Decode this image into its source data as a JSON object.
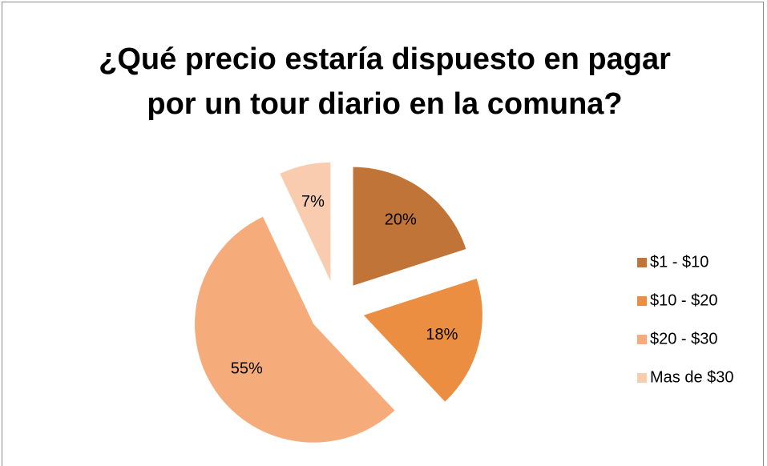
{
  "chart_data": {
    "type": "pie",
    "title": "¿Qué precio estaría dispuesto en pagar por un tour diario en la comuna?",
    "categories": [
      "$1 - $10",
      "$10 - $20",
      "$20 - $30",
      "Mas de $30"
    ],
    "values": [
      20,
      18,
      55,
      7
    ],
    "value_labels": [
      "20%",
      "18%",
      "55%",
      "7%"
    ],
    "colors": [
      "#C07437",
      "#EB8E42",
      "#F6AB7A",
      "#F9CBAF"
    ],
    "legend": "right"
  }
}
